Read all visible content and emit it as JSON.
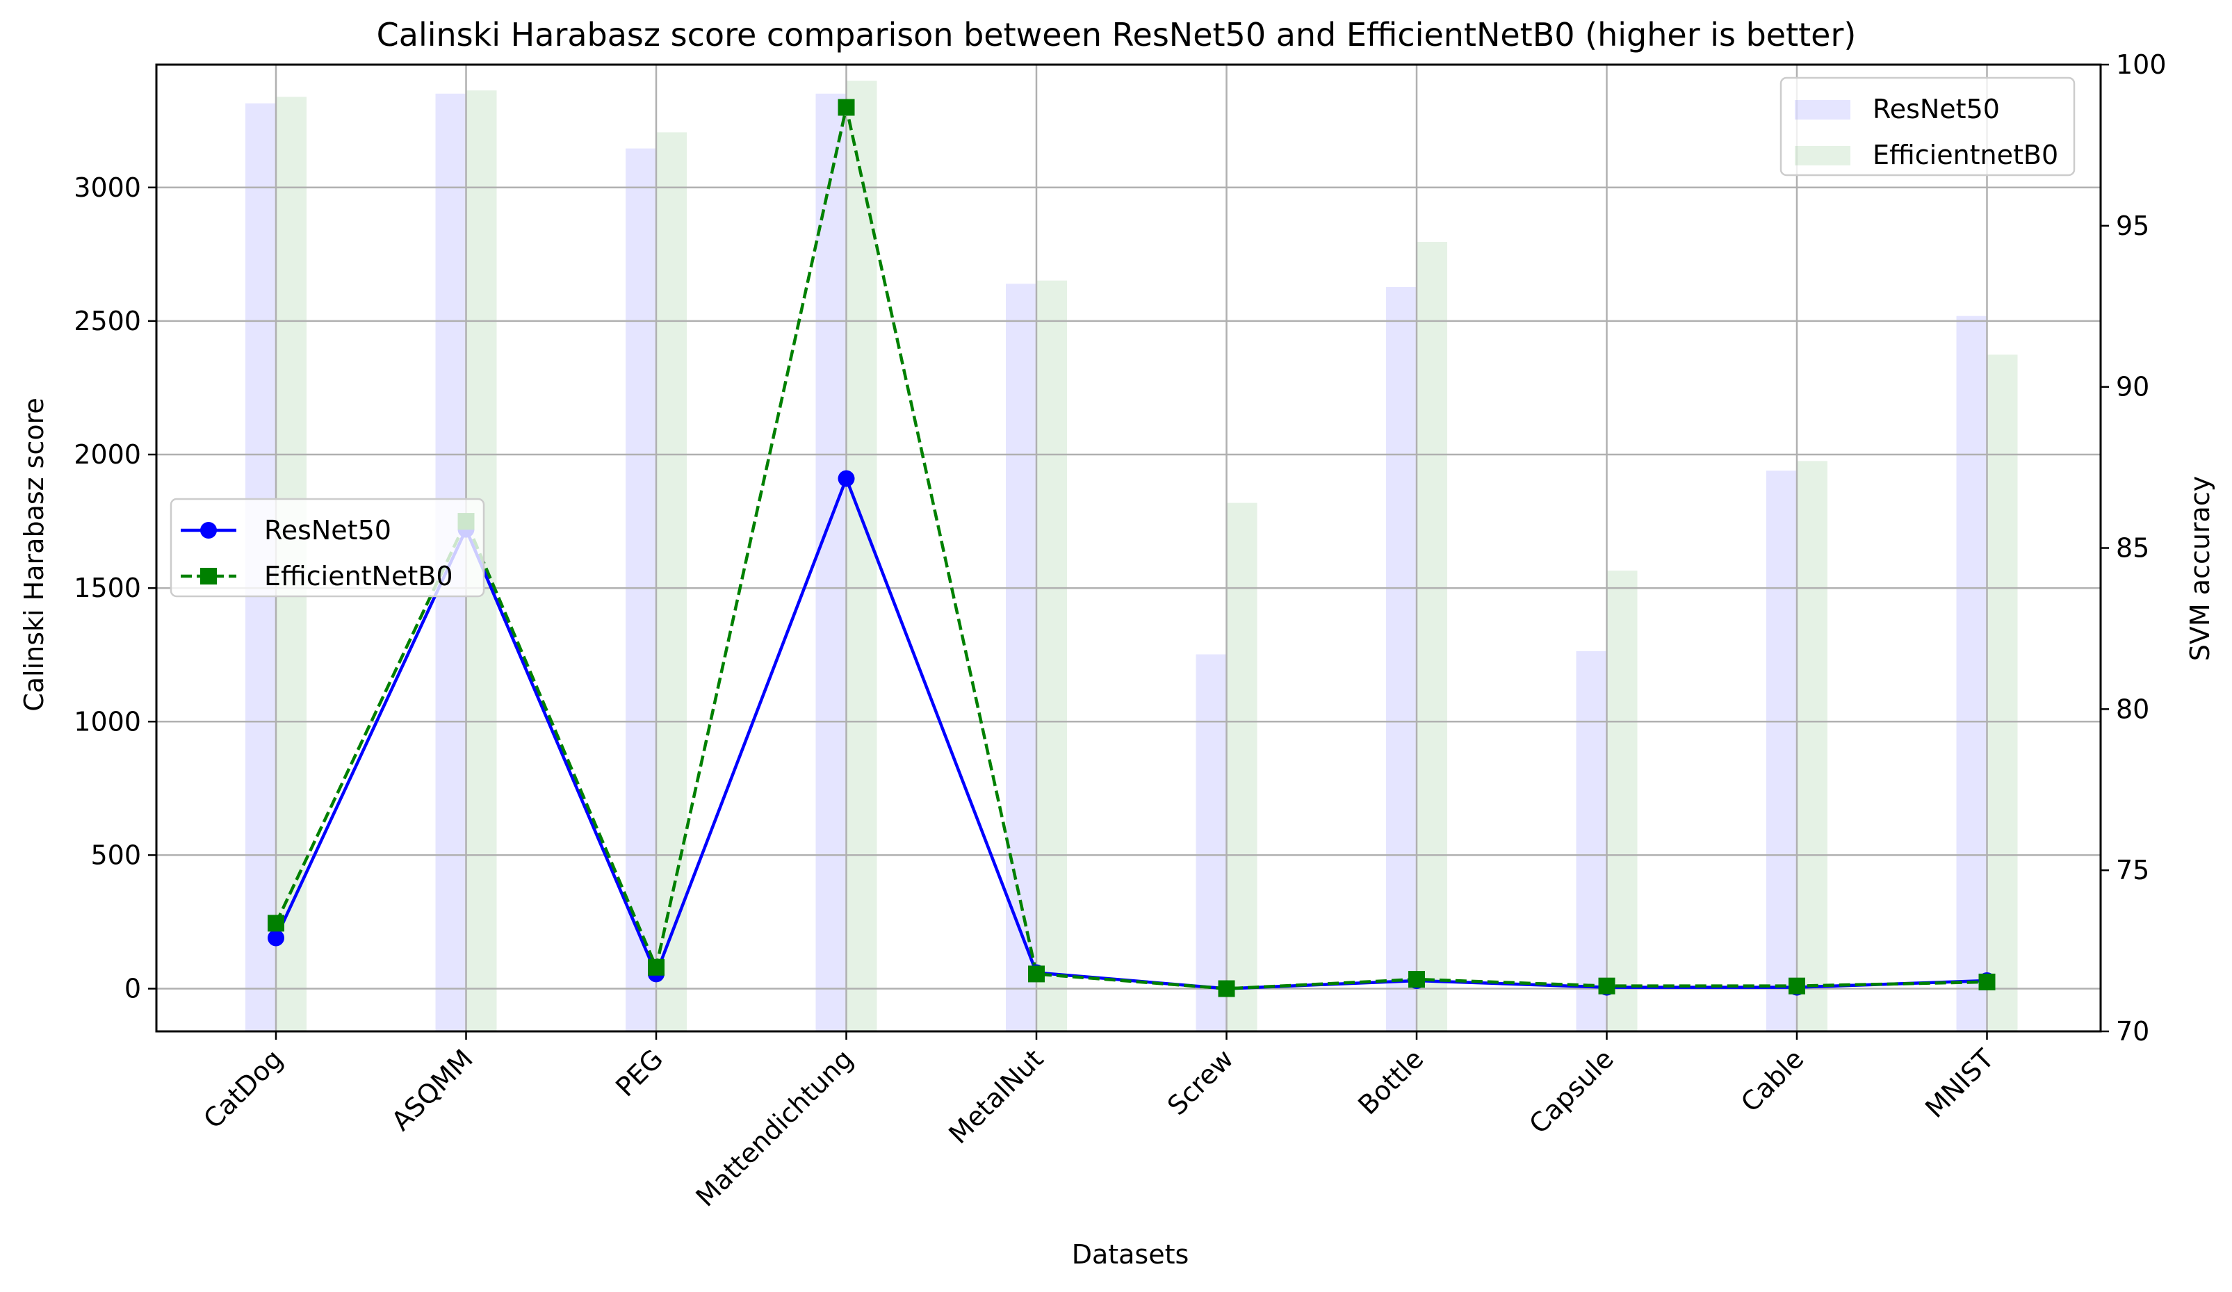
{
  "chart_data": {
    "type": "bar",
    "title": "Calinski Harabasz score comparison between ResNet50 and EfficientNetB0 (higher is better)",
    "xlabel": "Datasets",
    "ylabel": "Calinski Harabasz score",
    "y2label": "SVM accuracy",
    "categories": [
      "CatDog",
      "ASQMM",
      "PEG",
      "Mattendichtung",
      "MetalNut",
      "Screw",
      "Bottle",
      "Capsule",
      "Cable",
      "MNIST"
    ],
    "ylim": [
      -160,
      3460
    ],
    "y2lim": [
      70,
      100
    ],
    "yticks": [
      0,
      500,
      1000,
      1500,
      2000,
      2500,
      3000
    ],
    "y2ticks": [
      70,
      75,
      80,
      85,
      90,
      95,
      100
    ],
    "grid": true,
    "bar_series": [
      {
        "name": "ResNet50",
        "axis": "right",
        "color": "#0000ff",
        "alpha": 0.1,
        "values": [
          98.8,
          99.1,
          97.4,
          99.1,
          93.2,
          81.7,
          93.1,
          81.8,
          87.4,
          92.2
        ]
      },
      {
        "name": "EfficientnetB0",
        "axis": "right",
        "color": "#008000",
        "alpha": 0.1,
        "values": [
          99.0,
          99.2,
          97.9,
          99.5,
          93.3,
          86.4,
          94.5,
          84.3,
          87.7,
          91.0
        ]
      }
    ],
    "line_series": [
      {
        "name": "ResNet50",
        "axis": "left",
        "color": "#0000ff",
        "style": "solid",
        "marker": "circle",
        "values": [
          190,
          1720,
          55,
          1910,
          60,
          0,
          30,
          5,
          5,
          30
        ]
      },
      {
        "name": "EfficientNetB0",
        "axis": "left",
        "color": "#008000",
        "style": "dashed",
        "marker": "square",
        "values": [
          245,
          1750,
          80,
          3300,
          55,
          0,
          35,
          10,
          10,
          25
        ]
      }
    ],
    "legend_bars_placement": "top-right",
    "legend_lines_placement": "center-left"
  }
}
